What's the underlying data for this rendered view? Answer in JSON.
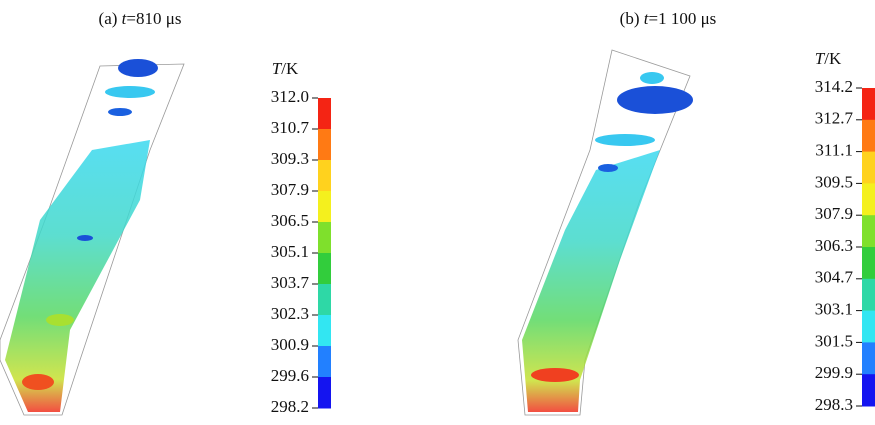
{
  "panels": [
    {
      "label": "(a)",
      "variable": "t",
      "rest": "=810 μs",
      "colorbar": {
        "variable": "T",
        "unit": "/K",
        "ticks": [
          "312.0",
          "310.7",
          "309.3",
          "307.9",
          "306.5",
          "305.1",
          "303.7",
          "302.3",
          "300.9",
          "299.6",
          "298.2"
        ],
        "colors": [
          "#f42414",
          "#ff7a14",
          "#ffd21e",
          "#f4f01e",
          "#7fe02c",
          "#32cd3c",
          "#2ed8a6",
          "#32e6f2",
          "#2280ff",
          "#1414f0"
        ]
      }
    },
    {
      "label": "(b)",
      "variable": "t",
      "rest": "=1 100 μs",
      "colorbar": {
        "variable": "T",
        "unit": "/K",
        "ticks": [
          "314.2",
          "312.7",
          "311.1",
          "309.5",
          "307.9",
          "306.3",
          "304.7",
          "303.1",
          "301.5",
          "299.9",
          "298.3"
        ],
        "colors": [
          "#f42414",
          "#ff7a14",
          "#ffd21e",
          "#f4f01e",
          "#7fe02c",
          "#32cd3c",
          "#2ed8a6",
          "#32e6f2",
          "#2280ff",
          "#1414f0"
        ]
      }
    }
  ]
}
